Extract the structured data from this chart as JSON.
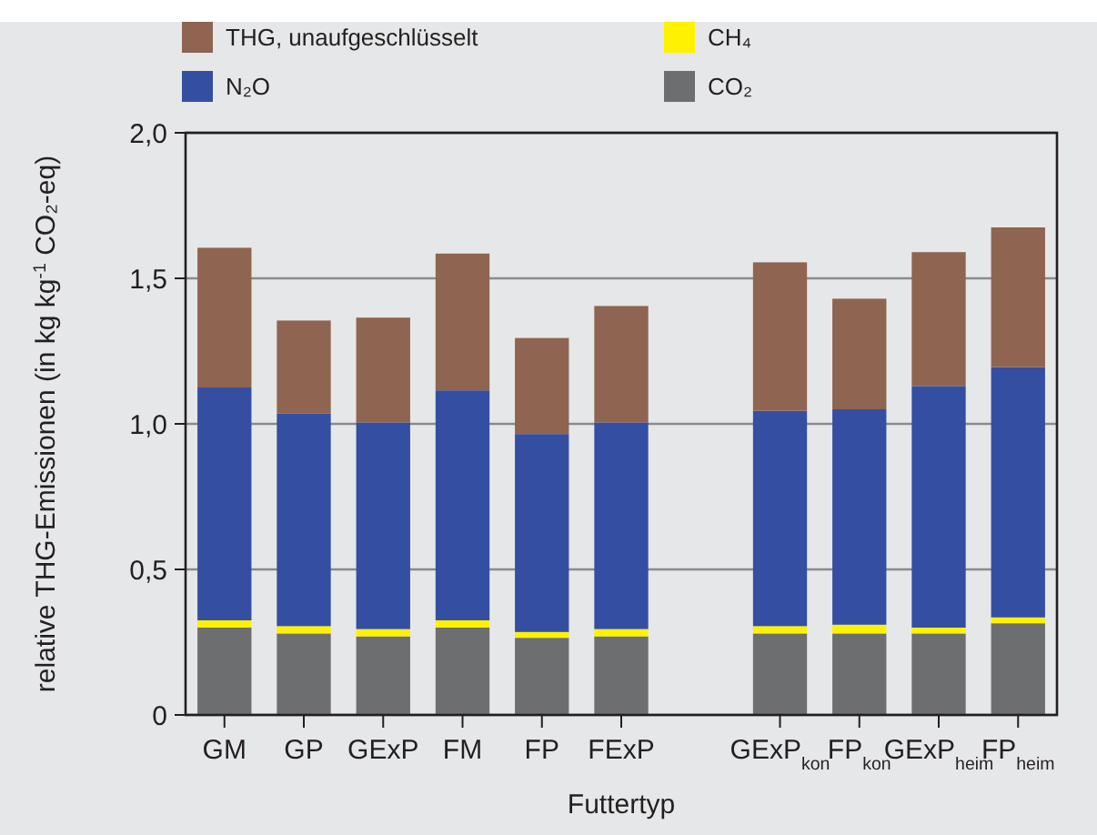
{
  "chart_data": {
    "type": "bar",
    "stacked": true,
    "xlabel": "Futtertyp",
    "ylabel": "relative THG-Emissionen (in kg kg$^{-1}$ CO₂-eq)",
    "categories": [
      "GM",
      "GP",
      "GExP",
      "FM",
      "FP",
      "FExP",
      null,
      "GExP$_{kon}$",
      "FP$_{kon}$",
      "GExP$_{heim}$",
      "FP$_{heim}$"
    ],
    "series": [
      {
        "name": "CO₂",
        "color": "#6d6e70",
        "values": [
          0.3,
          0.28,
          0.27,
          0.3,
          0.265,
          0.27,
          null,
          0.28,
          0.28,
          0.28,
          0.315
        ]
      },
      {
        "name": "CH₄",
        "color": "#fff200",
        "values": [
          0.025,
          0.025,
          0.025,
          0.025,
          0.02,
          0.025,
          null,
          0.025,
          0.03,
          0.02,
          0.02
        ]
      },
      {
        "name": "N₂O",
        "color": "#344ea2",
        "values": [
          0.8,
          0.73,
          0.71,
          0.79,
          0.68,
          0.71,
          null,
          0.74,
          0.74,
          0.83,
          0.86
        ]
      },
      {
        "name": "THG, unaufgeschlüsselt",
        "color": "#8f6450",
        "values": [
          0.48,
          0.32,
          0.36,
          0.47,
          0.33,
          0.4,
          null,
          0.51,
          0.38,
          0.46,
          0.48
        ]
      }
    ],
    "ylim": [
      0,
      2
    ],
    "yticks": [
      0,
      {
        "value": 0.5,
        "label": "0,5"
      },
      {
        "value": 1,
        "label": "1,0"
      },
      {
        "value": 1.5,
        "label": "1,5"
      },
      {
        "value": 2,
        "label": "2,0"
      }
    ],
    "grid": "y",
    "legend": "top"
  }
}
